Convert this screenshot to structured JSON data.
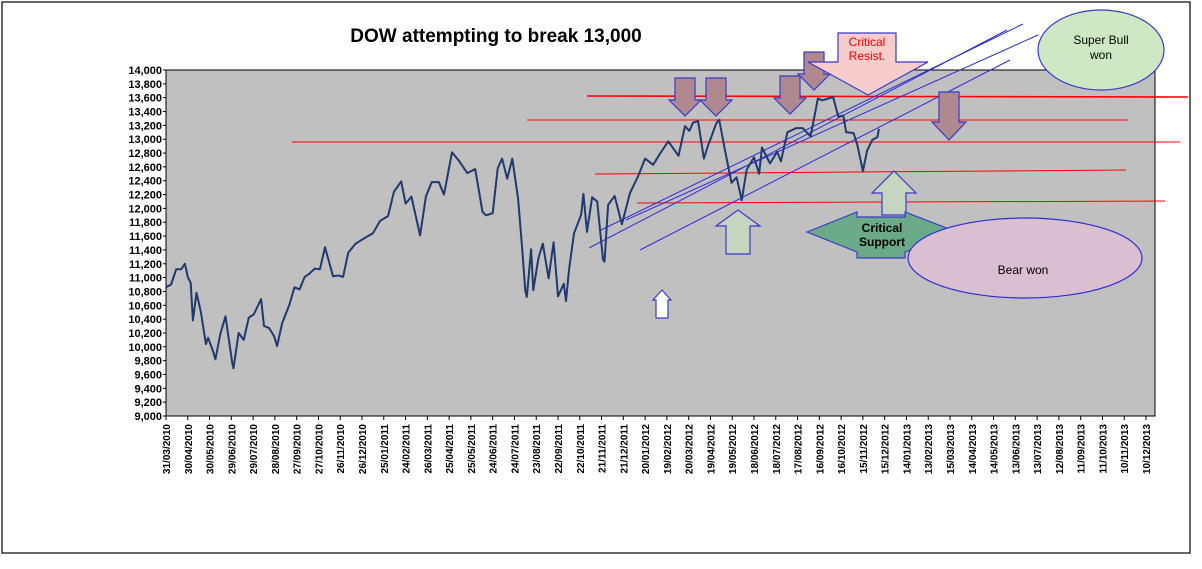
{
  "chart_data": {
    "type": "line",
    "title": "DOW attempting to break 13,000",
    "xlabel": "",
    "ylabel": "",
    "ylim": [
      9000,
      14000
    ],
    "x_range": [
      "31/03/2010",
      "10/12/2013"
    ],
    "y_ticks": [
      "9,000",
      "9,200",
      "9,400",
      "9,600",
      "9,800",
      "10,000",
      "10,200",
      "10,400",
      "10,600",
      "10,800",
      "11,000",
      "11,200",
      "11,400",
      "11,600",
      "11,800",
      "12,000",
      "12,200",
      "12,400",
      "12,600",
      "12,800",
      "13,000",
      "13,200",
      "13,400",
      "13,600",
      "13,800",
      "14,000"
    ],
    "x_ticks": [
      "31/03/2010",
      "30/04/2010",
      "30/05/2010",
      "29/06/2010",
      "29/07/2010",
      "28/08/2010",
      "27/09/2010",
      "27/10/2010",
      "26/11/2010",
      "26/12/2010",
      "25/01/2011",
      "24/02/2011",
      "26/03/2011",
      "25/04/2011",
      "25/05/2011",
      "24/06/2011",
      "24/07/2011",
      "23/08/2011",
      "22/09/2011",
      "22/10/2011",
      "21/11/2011",
      "21/12/2011",
      "20/01/2012",
      "19/02/2012",
      "20/03/2012",
      "19/04/2012",
      "19/05/2012",
      "18/06/2012",
      "18/07/2012",
      "17/08/2012",
      "16/09/2012",
      "16/10/2012",
      "15/11/2012",
      "15/12/2012",
      "14/01/2013",
      "13/02/2013",
      "15/03/2013",
      "14/04/2013",
      "14/05/2013",
      "13/06/2013",
      "13/07/2013",
      "12/08/2013",
      "11/09/2013",
      "11/10/2013",
      "10/11/2013",
      "10/12/2013"
    ],
    "grid": false,
    "legend": "none",
    "background_color": "#c0c0c0",
    "series": [
      {
        "color": "#1f3a6e",
        "points": [
          [
            "2010-03-31",
            10860
          ],
          [
            "2010-04-07",
            10900
          ],
          [
            "2010-04-14",
            11120
          ],
          [
            "2010-04-21",
            11120
          ],
          [
            "2010-04-26",
            11200
          ],
          [
            "2010-04-30",
            11010
          ],
          [
            "2010-05-04",
            10920
          ],
          [
            "2010-05-07",
            10380
          ],
          [
            "2010-05-12",
            10780
          ],
          [
            "2010-05-18",
            10510
          ],
          [
            "2010-05-25",
            10040
          ],
          [
            "2010-05-28",
            10130
          ],
          [
            "2010-06-04",
            9930
          ],
          [
            "2010-06-07",
            9820
          ],
          [
            "2010-06-14",
            10190
          ],
          [
            "2010-06-21",
            10440
          ],
          [
            "2010-06-25",
            10150
          ],
          [
            "2010-06-30",
            9780
          ],
          [
            "2010-07-02",
            9690
          ],
          [
            "2010-07-09",
            10200
          ],
          [
            "2010-07-16",
            10100
          ],
          [
            "2010-07-23",
            10420
          ],
          [
            "2010-07-30",
            10470
          ],
          [
            "2010-08-09",
            10690
          ],
          [
            "2010-08-13",
            10300
          ],
          [
            "2010-08-20",
            10270
          ],
          [
            "2010-08-27",
            10150
          ],
          [
            "2010-08-31",
            10010
          ],
          [
            "2010-09-07",
            10340
          ],
          [
            "2010-09-17",
            10610
          ],
          [
            "2010-09-24",
            10860
          ],
          [
            "2010-10-01",
            10830
          ],
          [
            "2010-10-08",
            11010
          ],
          [
            "2010-10-15",
            11060
          ],
          [
            "2010-10-22",
            11130
          ],
          [
            "2010-10-29",
            11120
          ],
          [
            "2010-11-05",
            11440
          ],
          [
            "2010-11-16",
            11020
          ],
          [
            "2010-11-24",
            11030
          ],
          [
            "2010-11-30",
            11010
          ],
          [
            "2010-12-07",
            11360
          ],
          [
            "2010-12-17",
            11490
          ],
          [
            "2010-12-31",
            11580
          ],
          [
            "2011-01-10",
            11640
          ],
          [
            "2011-01-20",
            11820
          ],
          [
            "2011-01-31",
            11890
          ],
          [
            "2011-02-08",
            12240
          ],
          [
            "2011-02-18",
            12390
          ],
          [
            "2011-02-24",
            12070
          ],
          [
            "2011-03-04",
            12170
          ],
          [
            "2011-03-16",
            11610
          ],
          [
            "2011-03-24",
            12170
          ],
          [
            "2011-04-01",
            12380
          ],
          [
            "2011-04-11",
            12380
          ],
          [
            "2011-04-18",
            12200
          ],
          [
            "2011-04-29",
            12810
          ],
          [
            "2011-05-09",
            12680
          ],
          [
            "2011-05-20",
            12510
          ],
          [
            "2011-05-31",
            12570
          ],
          [
            "2011-06-10",
            11950
          ],
          [
            "2011-06-15",
            11900
          ],
          [
            "2011-06-24",
            11930
          ],
          [
            "2011-07-01",
            12580
          ],
          [
            "2011-07-07",
            12720
          ],
          [
            "2011-07-14",
            12430
          ],
          [
            "2011-07-21",
            12720
          ],
          [
            "2011-07-29",
            12140
          ],
          [
            "2011-08-04",
            11380
          ],
          [
            "2011-08-08",
            10810
          ],
          [
            "2011-08-10",
            10720
          ],
          [
            "2011-08-16",
            11410
          ],
          [
            "2011-08-19",
            10820
          ],
          [
            "2011-08-26",
            11280
          ],
          [
            "2011-09-01",
            11490
          ],
          [
            "2011-09-09",
            10990
          ],
          [
            "2011-09-16",
            11510
          ],
          [
            "2011-09-22",
            10730
          ],
          [
            "2011-09-30",
            10910
          ],
          [
            "2011-10-03",
            10660
          ],
          [
            "2011-10-07",
            11100
          ],
          [
            "2011-10-14",
            11640
          ],
          [
            "2011-10-24",
            11910
          ],
          [
            "2011-10-27",
            12210
          ],
          [
            "2011-11-01",
            11660
          ],
          [
            "2011-11-08",
            12160
          ],
          [
            "2011-11-15",
            12100
          ],
          [
            "2011-11-23",
            11260
          ],
          [
            "2011-11-25",
            11230
          ],
          [
            "2011-11-30",
            12050
          ],
          [
            "2011-12-09",
            12180
          ],
          [
            "2011-12-19",
            11770
          ],
          [
            "2011-12-30",
            12220
          ],
          [
            "2012-01-10",
            12460
          ],
          [
            "2012-01-20",
            12720
          ],
          [
            "2012-01-31",
            12630
          ],
          [
            "2012-02-10",
            12800
          ],
          [
            "2012-02-21",
            12970
          ],
          [
            "2012-03-06",
            12760
          ],
          [
            "2012-03-15",
            13190
          ],
          [
            "2012-03-21",
            13120
          ],
          [
            "2012-03-26",
            13240
          ],
          [
            "2012-04-02",
            13260
          ],
          [
            "2012-04-10",
            12720
          ],
          [
            "2012-04-16",
            12920
          ],
          [
            "2012-04-20",
            13030
          ],
          [
            "2012-04-27",
            13230
          ],
          [
            "2012-05-01",
            13280
          ],
          [
            "2012-05-09",
            12840
          ],
          [
            "2012-05-18",
            12370
          ],
          [
            "2012-05-25",
            12450
          ],
          [
            "2012-06-01",
            12120
          ],
          [
            "2012-06-08",
            12560
          ],
          [
            "2012-06-18",
            12740
          ],
          [
            "2012-06-25",
            12500
          ],
          [
            "2012-06-29",
            12880
          ],
          [
            "2012-07-10",
            12650
          ],
          [
            "2012-07-20",
            12820
          ],
          [
            "2012-07-25",
            12680
          ],
          [
            "2012-08-03",
            13100
          ],
          [
            "2012-08-15",
            13160
          ],
          [
            "2012-08-24",
            13160
          ],
          [
            "2012-09-04",
            13040
          ],
          [
            "2012-09-14",
            13590
          ],
          [
            "2012-09-20",
            13560
          ],
          [
            "2012-10-05",
            13610
          ],
          [
            "2012-10-12",
            13330
          ],
          [
            "2012-10-19",
            13340
          ],
          [
            "2012-10-23",
            13100
          ],
          [
            "2012-11-02",
            13090
          ],
          [
            "2012-11-07",
            12930
          ],
          [
            "2012-11-15",
            12540
          ],
          [
            "2012-11-21",
            12840
          ],
          [
            "2012-11-28",
            12990
          ],
          [
            "2012-12-05",
            13030
          ],
          [
            "2012-12-07",
            13150
          ]
        ]
      }
    ]
  },
  "annotations": {
    "critical_resistance": "Critical\nResist.",
    "critical_support": "Critical\nSupport",
    "super_bull": "Super Bull\nwon",
    "bear": "Bear won"
  },
  "colors": {
    "down_arrow": "#b08890",
    "down_arrow_stroke": "#3a3ac8",
    "up_arrow": "#c5d5c0",
    "red_line": "#ff0000",
    "blue_channel": "#2d2dd6",
    "bull_ellipse": "#cfe8c4",
    "bear_ellipse": "#d9bfcf",
    "support_arrow": "#6aaa88",
    "resist_arrow": "#f7cccc"
  }
}
